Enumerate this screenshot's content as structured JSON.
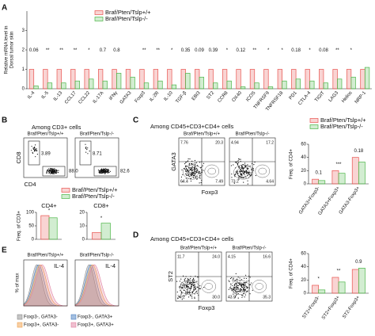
{
  "panel_labels": [
    "A",
    "B",
    "C",
    "D",
    "E"
  ],
  "chart_data": [
    {
      "type": "bar",
      "ylabel": [
        "Relative mRNA level in",
        "Dorsal tumor skin"
      ],
      "categories": [
        "IL-4",
        "IL-5",
        "IL-13",
        "CCL17",
        "CCL22",
        "IL-17A",
        "IFNγ",
        "GATA3",
        "Foxp3",
        "IL-2R",
        "IL-10",
        "TGF-β",
        "EBI3",
        "ST2",
        "CCR8",
        "OX40",
        "ICOS",
        "TNFRSF9",
        "TNFRSF18",
        "PD1",
        "CTLA-4",
        "TIGIT",
        "LAG3",
        "Helios",
        "NRP-1"
      ],
      "series": [
        {
          "name": "Braf/Pten/Tslp+/+",
          "color": "#e8534f",
          "values": [
            1,
            1,
            1,
            1,
            1,
            1,
            1,
            1,
            1,
            1,
            1,
            1,
            1,
            1,
            1,
            1,
            1,
            1,
            1,
            1,
            1,
            1,
            1,
            1,
            1
          ]
        },
        {
          "name": "Braf/Pten/Tslp-/-",
          "color": "#4cb648",
          "values": [
            0.15,
            0.3,
            0.3,
            0.4,
            0.5,
            0.4,
            0.8,
            0.6,
            0.3,
            0.4,
            0.2,
            0.8,
            0.6,
            0.3,
            0.4,
            0.1,
            0.3,
            0.1,
            0.4,
            0.5,
            0.4,
            0.3,
            0.5,
            0.6,
            1.1
          ]
        }
      ],
      "annotations": [
        "0.06",
        "**",
        "**",
        "**",
        "*",
        "0.7",
        "0.8",
        null,
        "**",
        "**",
        "*",
        "0.35",
        "0.09",
        "0.39",
        "*",
        "0.12",
        "**",
        "*",
        "*",
        "0.18",
        "*",
        "0.08",
        "**",
        "*",
        null
      ],
      "ylim": [
        0,
        4
      ],
      "yticks": [
        0,
        1,
        2,
        3
      ],
      "legend": "top-left"
    },
    {
      "type": "bar",
      "title": "CD4+",
      "ylabel": [
        "Freq. of CD3+"
      ],
      "series": [
        {
          "name": "Braf/Pten/Tslp+/+",
          "color": "#e8534f",
          "values": [
            88
          ]
        },
        {
          "name": "Braf/Pten/Tslp-/-",
          "color": "#4cb648",
          "values": [
            80
          ]
        }
      ],
      "annotations": [
        "*"
      ],
      "ylim": [
        0,
        100
      ],
      "yticks": [
        0,
        50,
        100
      ],
      "legend": "top"
    },
    {
      "type": "bar",
      "title": "CD8+",
      "series": [
        {
          "color": "#e8534f",
          "values": [
            5
          ]
        },
        {
          "color": "#4cb648",
          "values": [
            12
          ]
        }
      ],
      "annotations": [
        "*"
      ],
      "ylim": [
        0,
        20
      ],
      "yticks": [
        0,
        10,
        20
      ]
    },
    {
      "type": "bar",
      "ylabel": [
        "Freq. of CD4+"
      ],
      "categories": [
        "GATA3+Foxp3-",
        "GATA3+Foxp3+",
        "GATA3-Foxp3+"
      ],
      "series": [
        {
          "name": "Braf/Pten/Tslp+/+",
          "color": "#e8534f",
          "values": [
            7,
            20,
            40
          ]
        },
        {
          "name": "Braf/Pten/Tslp-/-",
          "color": "#4cb648",
          "values": [
            5,
            16,
            33
          ]
        }
      ],
      "annotations": [
        "0.1",
        "***",
        "0.18"
      ],
      "ylim": [
        0,
        60
      ],
      "yticks": [
        0,
        20,
        40,
        60
      ],
      "legend": "top-right"
    },
    {
      "type": "bar",
      "ylabel": [
        "Freq. of CD4+"
      ],
      "categories": [
        "ST2+Foxp3-",
        "ST2+Foxp3+",
        "ST2-Foxp3+"
      ],
      "series": [
        {
          "color": "#e8534f",
          "values": [
            12,
            24,
            36
          ]
        },
        {
          "color": "#4cb648",
          "values": [
            5,
            17,
            38
          ]
        }
      ],
      "annotations": [
        "*",
        "**",
        "0.9"
      ],
      "ylim": [
        0,
        60
      ],
      "yticks": [
        0,
        20,
        40,
        60
      ]
    }
  ],
  "flow": [
    {
      "title": "Among CD3+ cells",
      "headers": [
        "Braf/Pten/Tslp+/+",
        "Braf/Pten/Tslp-/-"
      ],
      "y_label": "CD8",
      "x_label": "CD4",
      "gates": [
        [
          "3.89",
          "88.0"
        ],
        [
          "8.71",
          "82.6"
        ]
      ]
    },
    {
      "title": "Among CD45+CD3+CD4+ cells",
      "headers": [
        "Braf/Pten/Tslp+/+",
        "Braf/Pten/Tslp-/-"
      ],
      "y_label": "GATA3",
      "x_label": "Foxp3",
      "gates": [
        [
          "7.76",
          "20.3",
          "64.4",
          "7.49"
        ],
        [
          "4.94",
          "17.2",
          "73.2",
          "4.64"
        ]
      ]
    },
    {
      "title": "Among CD45+CD3+CD4+ cells",
      "headers": [
        "Braf/Pten/Tslp+/+",
        "Braf/Pten/Tslp-/-"
      ],
      "y_label": "ST2",
      "x_label": "Foxp3",
      "gates": [
        [
          "11.7",
          "24.0",
          "34.2",
          "30.0"
        ],
        [
          "4.15",
          "16.6",
          "43.9",
          "35.3"
        ]
      ]
    }
  ],
  "histogram": {
    "headers": [
      "Braf/Pten/Tslp+/+",
      "Braf/Pten/Tslp-/-"
    ],
    "y_label": "% of max",
    "plot_labels": [
      "IL-4",
      "IL-4"
    ],
    "legend": [
      {
        "name": "Foxp3-, GATA3-",
        "color": "#8c8c8c"
      },
      {
        "name": "Foxp3-, GATA3+",
        "color": "#4a7fc1"
      },
      {
        "name": "Foxp3+, GATA3-",
        "color": "#f0a04b"
      },
      {
        "name": "Foxp3+, GATA3+",
        "color": "#e07fa0"
      }
    ]
  }
}
